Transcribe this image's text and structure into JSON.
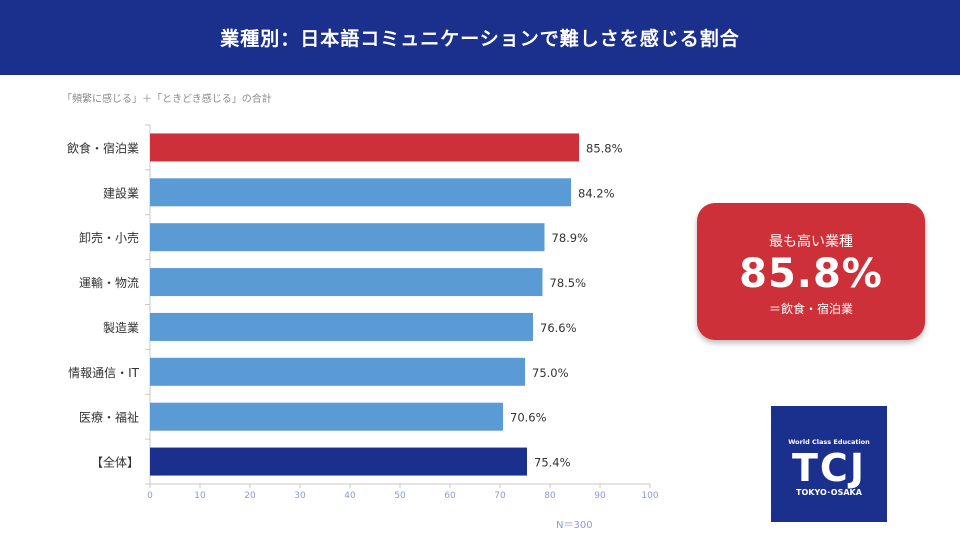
{
  "header": {
    "title": "業種別：日本語コミュニケーションで難しさを感じる割合"
  },
  "chart_data": {
    "type": "bar",
    "orientation": "horizontal",
    "subtitle": "「頻繁に感じる」＋「ときどき感じる」の合計",
    "categories": [
      "飲食・宿泊業",
      "建設業",
      "卸売・小売",
      "運輸・物流",
      "製造業",
      "情報通信・IT",
      "医療・福祉",
      "【全体】"
    ],
    "values": [
      85.8,
      84.2,
      78.9,
      78.5,
      76.6,
      75.0,
      70.6,
      75.4
    ],
    "value_labels": [
      "85.8%",
      "84.2%",
      "78.9%",
      "78.5%",
      "76.6%",
      "75.0%",
      "70.6%",
      "75.4%"
    ],
    "colors": [
      "#cd3038",
      "#5b9bd5",
      "#5b9bd5",
      "#5b9bd5",
      "#5b9bd5",
      "#5b9bd5",
      "#5b9bd5",
      "#1b2f8c"
    ],
    "xlim": [
      0,
      100
    ],
    "xticks": [
      0,
      10,
      20,
      30,
      40,
      50,
      60,
      70,
      80,
      90,
      100
    ],
    "xlabel": "",
    "ylabel": "",
    "grid": false,
    "legend": "none",
    "note": "N＝300"
  },
  "callout": {
    "title": "最も高い業種",
    "value": "85.8%",
    "sub": "＝飲食・宿泊業"
  },
  "logo": {
    "tagline": "World Class Education",
    "mark": "TCJ",
    "location": "TOKYO･OSAKA"
  }
}
